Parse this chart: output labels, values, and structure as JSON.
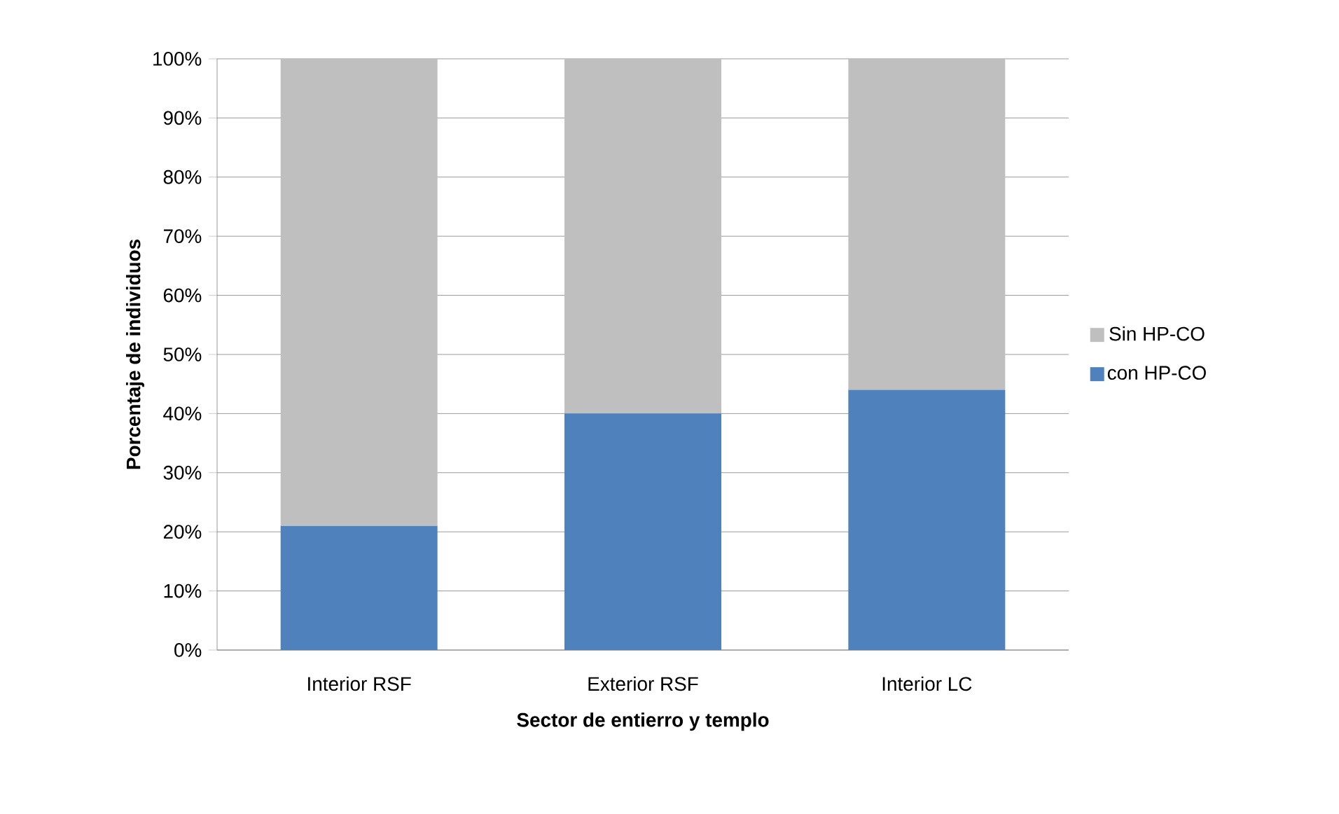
{
  "chart_data": {
    "type": "bar",
    "stacked": true,
    "xlabel": "Sector de entierro y templo",
    "ylabel": "Porcentaje de individuos",
    "categories": [
      "Interior RSF",
      "Exterior RSF",
      "Interior LC"
    ],
    "series": [
      {
        "name": "con HP-CO",
        "color": "#4f81bd",
        "values": [
          21,
          40,
          44
        ]
      },
      {
        "name": "Sin HP-CO",
        "color": "#bfbfbf",
        "values": [
          79,
          60,
          56
        ]
      }
    ],
    "ylim": [
      0,
      100
    ],
    "yticks": [
      {
        "value": 0,
        "label": "0%"
      },
      {
        "value": 10,
        "label": "10%"
      },
      {
        "value": 20,
        "label": "20%"
      },
      {
        "value": 30,
        "label": "30%"
      },
      {
        "value": 40,
        "label": "40%"
      },
      {
        "value": 50,
        "label": "50%"
      },
      {
        "value": 60,
        "label": "60%"
      },
      {
        "value": 70,
        "label": "70%"
      },
      {
        "value": 80,
        "label": "80%"
      },
      {
        "value": 90,
        "label": "90%"
      },
      {
        "value": 100,
        "label": "100%"
      }
    ],
    "grid": "y",
    "legend": "right"
  }
}
